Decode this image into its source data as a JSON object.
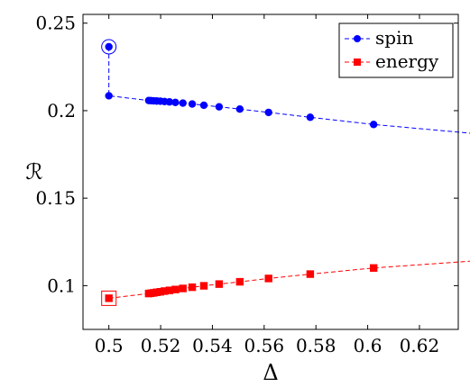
{
  "chart_data": {
    "type": "line",
    "xlabel": "Δ",
    "ylabel": "ℛ",
    "xlim": [
      0.49,
      0.635
    ],
    "ylim": [
      0.075,
      0.255
    ],
    "xticks": [
      0.5,
      0.52,
      0.54,
      0.56,
      0.58,
      0.6,
      0.62
    ],
    "xtick_labels": [
      "0.5",
      "0.52",
      "0.54",
      "0.56",
      "0.58",
      "0.6",
      "0.62"
    ],
    "yticks": [
      0.1,
      0.15,
      0.2,
      0.25
    ],
    "ytick_labels": [
      "0.1",
      "0.15",
      "0.2",
      "0.25"
    ],
    "grid": false,
    "legend_position": "top-right",
    "series": [
      {
        "name": "spin",
        "color": "#0000ff",
        "marker": "circle",
        "linestyle": "dashed",
        "x": [
          0.5,
          0.5,
          0.5154,
          0.5163,
          0.5173,
          0.5185,
          0.5199,
          0.5215,
          0.5234,
          0.5257,
          0.5286,
          0.5322,
          0.5367,
          0.5426,
          0.5506,
          0.5617,
          0.5778,
          0.6023,
          0.6435
        ],
        "y": [
          0.2365,
          0.2085,
          0.2058,
          0.2057,
          0.2056,
          0.2055,
          0.2054,
          0.2052,
          0.205,
          0.2047,
          0.2043,
          0.2038,
          0.2031,
          0.2022,
          0.2009,
          0.199,
          0.1962,
          0.1921,
          0.1866
        ],
        "highlighted_point_index": 0
      },
      {
        "name": "energy",
        "color": "#ff0000",
        "marker": "square",
        "linestyle": "dashed",
        "x": [
          0.5,
          0.5154,
          0.5163,
          0.5173,
          0.5185,
          0.5199,
          0.5215,
          0.5234,
          0.5257,
          0.5286,
          0.5322,
          0.5367,
          0.5426,
          0.5506,
          0.5617,
          0.5778,
          0.6023,
          0.6435
        ],
        "y": [
          0.0928,
          0.0955,
          0.0957,
          0.0959,
          0.0962,
          0.0965,
          0.0969,
          0.0973,
          0.0978,
          0.0984,
          0.0991,
          0.0999,
          0.1009,
          0.1022,
          0.1041,
          0.1066,
          0.1101,
          0.1144
        ],
        "highlighted_point_index": 0
      }
    ]
  }
}
